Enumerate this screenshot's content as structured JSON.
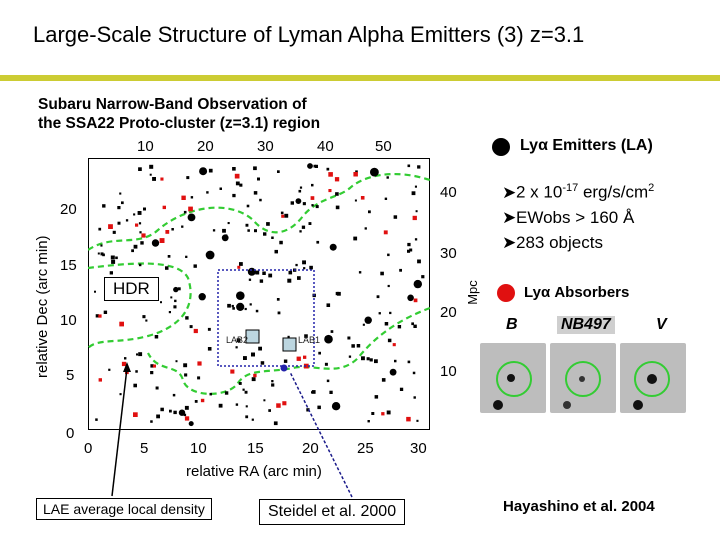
{
  "slide": {
    "title": "Large-Scale Structure of Lyman Alpha Emitters (3) z=3.1",
    "caption_line1": "Subaru Narrow-Band Observation of",
    "caption_line2": "the SSA22 Proto-cluster (z=3.1) region"
  },
  "plot": {
    "top_ticks": [
      "10",
      "20",
      "30",
      "40",
      "50"
    ],
    "bottom_ticks": [
      "0",
      "5",
      "10",
      "15",
      "20",
      "25",
      "30"
    ],
    "left_ticks": [
      "0",
      "5",
      "10",
      "15",
      "20"
    ],
    "right_ticks": [
      "10",
      "20",
      "30",
      "40"
    ],
    "xlabel": "relative RA (arc min)",
    "ylabel": "relative Dec (arc min)",
    "right_label": "Mpc",
    "hdr_label": "HDR",
    "lab1_label": "LAB1",
    "lab2_label": "LAB2"
  },
  "annotations": {
    "density_box": "LAE average local density",
    "steidel_box": "Steidel et al. 2000"
  },
  "legend": {
    "emitters_label": "Lyα Emitters (LA)",
    "bullet1_prefix": "2 x 10",
    "bullet1_exp": "-17",
    "bullet1_suffix": " erg/s/cm",
    "bullet1_sq": "2",
    "bullet2": "EWobs > 160  Å",
    "bullet3": "283 objects",
    "absorbers_label": "Lyα Absorbers",
    "emitter_color": "#000000",
    "absorber_color": "#e01010"
  },
  "stamps": {
    "labels": [
      "B",
      "NB497",
      "V"
    ]
  },
  "credit": "Hayashino et al. 2004"
}
